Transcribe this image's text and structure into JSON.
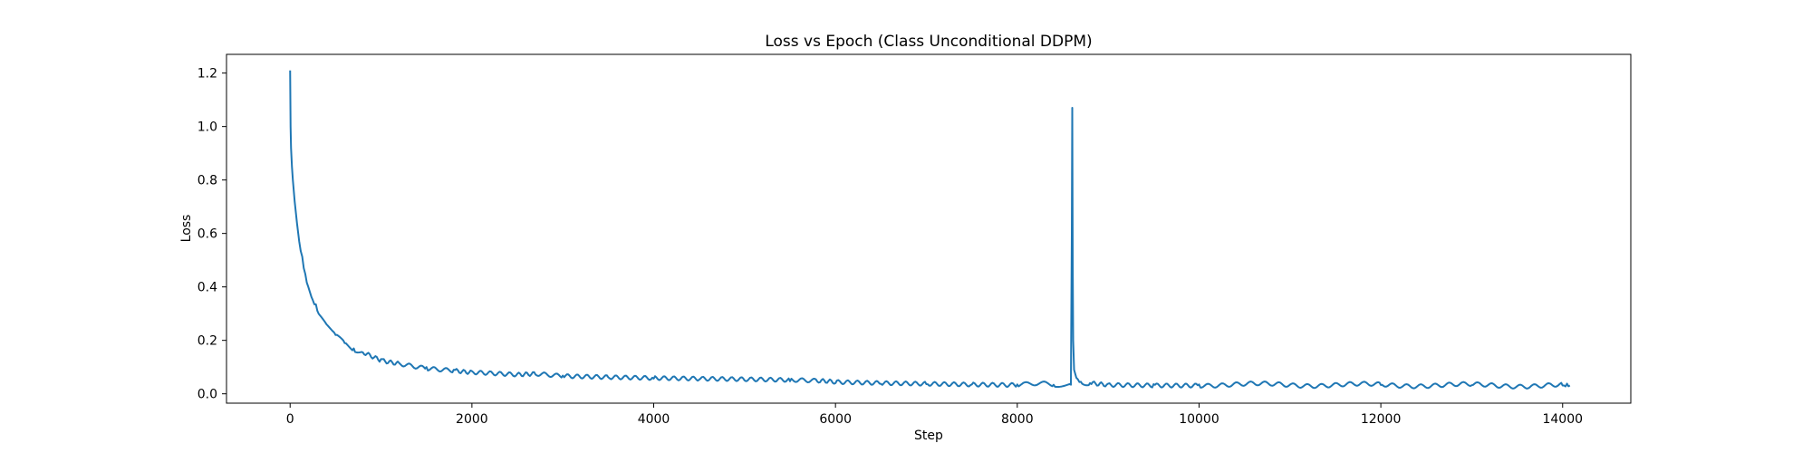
{
  "chart_data": {
    "type": "line",
    "title": "Loss vs Epoch (Class Unconditional DDPM)",
    "xlabel": "Step",
    "ylabel": "Loss",
    "xlim": [
      -700,
      14750
    ],
    "ylim": [
      -0.035,
      1.27
    ],
    "xticks": [
      0,
      2000,
      4000,
      6000,
      8000,
      10000,
      12000,
      14000
    ],
    "xtick_labels": [
      "0",
      "2000",
      "4000",
      "6000",
      "8000",
      "10000",
      "12000",
      "14000"
    ],
    "yticks": [
      0.0,
      0.2,
      0.4,
      0.6,
      0.8,
      1.0,
      1.2
    ],
    "ytick_labels": [
      "0.0",
      "0.2",
      "0.4",
      "0.6",
      "0.8",
      "1.0",
      "1.2"
    ],
    "grid": false,
    "legend": "none",
    "series": [
      {
        "color": "#1f77b4",
        "x": [
          0,
          5,
          10,
          20,
          30,
          50,
          75,
          100,
          150,
          200,
          250,
          300,
          400,
          500,
          600,
          700,
          800,
          1000,
          1200,
          1500,
          1800,
          2000,
          2500,
          2700,
          3000,
          3500,
          4000,
          4500,
          5000,
          5500,
          5800,
          6000,
          6500,
          7000,
          7500,
          8000,
          8400,
          8590,
          8600,
          8605,
          8610,
          8615,
          8625,
          8650,
          8700,
          8800,
          9000,
          9500,
          10000,
          11000,
          12000,
          13000,
          14000,
          14080
        ],
        "y": [
          1.21,
          1.0,
          0.92,
          0.85,
          0.8,
          0.72,
          0.64,
          0.57,
          0.47,
          0.4,
          0.35,
          0.31,
          0.26,
          0.22,
          0.19,
          0.17,
          0.155,
          0.13,
          0.115,
          0.1,
          0.09,
          0.085,
          0.075,
          0.072,
          0.068,
          0.062,
          0.057,
          0.053,
          0.05,
          0.047,
          0.046,
          0.04,
          0.037,
          0.036,
          0.035,
          0.035,
          0.034,
          0.034,
          0.6,
          1.07,
          0.5,
          0.2,
          0.09,
          0.06,
          0.045,
          0.04,
          0.038,
          0.036,
          0.035,
          0.034,
          0.033,
          0.032,
          0.031,
          0.031
        ]
      }
    ]
  }
}
